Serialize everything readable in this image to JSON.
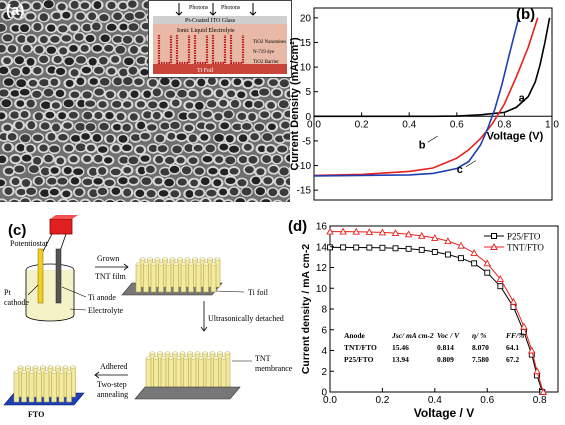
{
  "panel_a": {
    "label": "(a)",
    "inset": {
      "photons_1": "Photons",
      "photons_2": "Photons",
      "glass": "Pt-Coated ITO Glass",
      "electrolyte": "Ionic Liquid Electrolyte",
      "nanotubes": "TiO2 Nanotubes",
      "dye": "N-719 dye",
      "barrier": "TiO2 Barrier",
      "foil": "Ti Foil"
    }
  },
  "panel_b": {
    "label": "(b)",
    "curve_labels": [
      "a",
      "b",
      "c"
    ]
  },
  "panel_c": {
    "label": "(c)",
    "potentiostat": "Potentiostat",
    "pt_cathode": "Pt\ncathode",
    "ti_anode": "Ti anode",
    "electrolyte": "Electrolyte",
    "grown_1": "Grown",
    "grown_2": "TNT film",
    "ti_foil": "Ti foil",
    "ultrasonic": "Ultrasonically detached",
    "tnt_membrane_1": "TNT",
    "tnt_membrane_2": "membrance",
    "adhered": "Adhered",
    "two_step_1": "Two-step",
    "two_step_2": "annealing",
    "fto": "FTO"
  },
  "panel_d": {
    "label": "(d)",
    "table": {
      "headers": [
        "Anode",
        "Jsc/ mA cm-2",
        "Voc / V",
        "η/ %",
        "FF/%"
      ],
      "rows": [
        [
          "TNT/FTO",
          "15.46",
          "0.814",
          "8.070",
          "64.1"
        ],
        [
          "P25/FTO",
          "13.94",
          "0.809",
          "7.580",
          "67.2"
        ]
      ]
    }
  },
  "chart_data": [
    {
      "type": "line",
      "xlabel": "Voltage (V)",
      "ylabel": "Current Density (mA/cm²)",
      "xlim": [
        0.0,
        1.0
      ],
      "ylim": [
        -17,
        22
      ],
      "xticks": [
        "0.0",
        "0.2",
        "0.4",
        "0.6",
        "0.8",
        "1.0"
      ],
      "yticks": [
        "-15",
        "-10",
        "-5",
        "0",
        "5",
        "10",
        "15",
        "20"
      ],
      "series": [
        {
          "name": "a",
          "color": "#000000",
          "x": [
            0.0,
            0.5,
            0.6,
            0.7,
            0.8,
            0.85,
            0.9,
            0.93,
            0.95,
            0.97,
            0.99
          ],
          "y": [
            0,
            0,
            0.05,
            0.3,
            0.8,
            1.8,
            4.0,
            7.0,
            10.5,
            15.0,
            20.0
          ]
        },
        {
          "name": "b",
          "color": "#e8201c",
          "x": [
            0.0,
            0.2,
            0.4,
            0.5,
            0.6,
            0.65,
            0.7,
            0.75,
            0.8,
            0.85,
            0.9,
            0.94
          ],
          "y": [
            -12.0,
            -11.8,
            -11.2,
            -10.5,
            -8.5,
            -6.8,
            -4.5,
            -1.5,
            2.5,
            8.0,
            14.0,
            20.0
          ]
        },
        {
          "name": "c",
          "color": "#1f3fb0",
          "x": [
            0.0,
            0.2,
            0.4,
            0.5,
            0.6,
            0.65,
            0.7,
            0.73,
            0.76,
            0.79,
            0.82,
            0.86
          ],
          "y": [
            -12.1,
            -12.0,
            -11.9,
            -11.6,
            -10.6,
            -9.2,
            -5.8,
            -2.5,
            1.5,
            6.5,
            12.5,
            20.0
          ]
        }
      ]
    },
    {
      "type": "line",
      "xlabel": "Voltage / V",
      "ylabel": "Current density / mA cm-2",
      "xlim": [
        0.0,
        0.87
      ],
      "ylim": [
        0,
        16
      ],
      "xticks": [
        "0.0",
        "0.2",
        "0.4",
        "0.6",
        "0.8"
      ],
      "yticks": [
        "0",
        "2",
        "4",
        "6",
        "8",
        "10",
        "12",
        "14",
        "16"
      ],
      "legend": "top-right",
      "series": [
        {
          "name": "P25/FTO",
          "marker": "square",
          "color": "#000000",
          "x": [
            0.0,
            0.05,
            0.1,
            0.15,
            0.2,
            0.25,
            0.3,
            0.35,
            0.4,
            0.45,
            0.5,
            0.55,
            0.6,
            0.65,
            0.7,
            0.74,
            0.77,
            0.79,
            0.81
          ],
          "y": [
            13.94,
            13.94,
            13.93,
            13.92,
            13.9,
            13.85,
            13.8,
            13.7,
            13.5,
            13.25,
            12.9,
            12.4,
            11.5,
            10.2,
            8.2,
            5.8,
            3.6,
            1.6,
            0.0
          ]
        },
        {
          "name": "TNT/FTO",
          "marker": "triangle",
          "color": "#e8201c",
          "x": [
            0.0,
            0.05,
            0.1,
            0.15,
            0.2,
            0.25,
            0.3,
            0.35,
            0.4,
            0.45,
            0.5,
            0.55,
            0.6,
            0.65,
            0.7,
            0.74,
            0.77,
            0.79,
            0.814
          ],
          "y": [
            15.46,
            15.46,
            15.45,
            15.42,
            15.38,
            15.32,
            15.2,
            15.05,
            14.85,
            14.55,
            14.1,
            13.4,
            12.4,
            10.9,
            8.7,
            6.3,
            4.0,
            2.0,
            0.0
          ]
        }
      ]
    }
  ]
}
